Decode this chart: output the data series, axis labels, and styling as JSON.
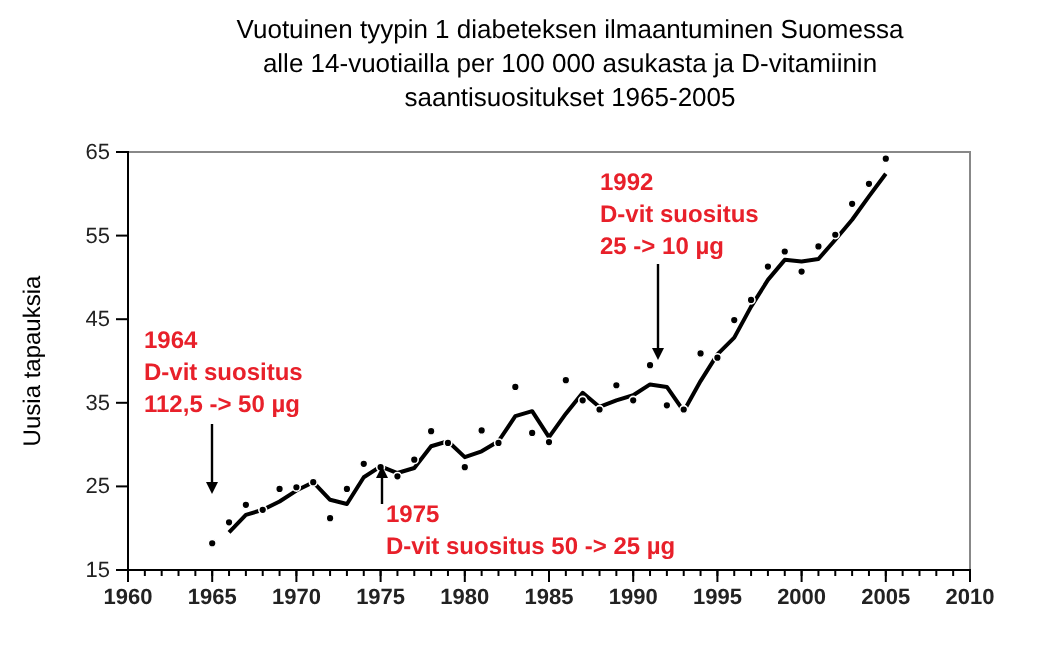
{
  "chart_data": {
    "type": "scatter",
    "title": "Vuotuinen tyypin 1 diabeteksen ilmaantuminen Suomessa\nalle 14-vuotiailla per 100 000 asukasta ja D-vitamiinin\nsaantisuositukset 1965-2005",
    "ylabel": "Uusia tapauksia",
    "xlim": [
      1960,
      2010
    ],
    "xticks": [
      1960,
      1965,
      1970,
      1975,
      1980,
      1985,
      1990,
      1995,
      2000,
      2005,
      2010
    ],
    "ylim": [
      15,
      65
    ],
    "yticks": [
      15,
      25,
      35,
      45,
      55,
      65
    ],
    "grid": false,
    "series": [
      {
        "color": "#000000",
        "marker": "circle",
        "x": [
          1965,
          1966,
          1967,
          1968,
          1969,
          1970,
          1971,
          1972,
          1973,
          1974,
          1975,
          1976,
          1977,
          1978,
          1979,
          1980,
          1981,
          1982,
          1983,
          1984,
          1985,
          1986,
          1987,
          1988,
          1989,
          1990,
          1991,
          1992,
          1993,
          1994,
          1995,
          1996,
          1997,
          1998,
          1999,
          2000,
          2001,
          2002,
          2003,
          2004,
          2005
        ],
        "values": [
          18.2,
          20.7,
          22.8,
          22.2,
          24.7,
          24.9,
          25.5,
          21.2,
          24.7,
          27.7,
          27.3,
          26.2,
          28.2,
          31.6,
          30.2,
          27.3,
          31.7,
          30.2,
          36.9,
          31.4,
          30.3,
          37.7,
          35.3,
          34.2,
          37.1,
          35.3,
          39.5,
          34.7,
          34.2,
          40.9,
          40.4,
          44.9,
          47.3,
          51.3,
          53.1,
          50.7,
          53.7,
          55.1,
          58.8,
          61.2,
          64.2
        ]
      },
      {
        "type": "line",
        "color": "#000000",
        "line_style": "solid",
        "x": [
          1966,
          1967,
          1968,
          1969,
          1970,
          1971,
          1972,
          1973,
          1974,
          1975,
          1976,
          1977,
          1978,
          1979,
          1980,
          1981,
          1982,
          1983,
          1984,
          1985,
          1986,
          1987,
          1988,
          1989,
          1990,
          1991,
          1992,
          1993,
          1994,
          1995,
          1996,
          1997,
          1998,
          1999,
          2000,
          2001,
          2002,
          2003,
          2004,
          2005
        ],
        "values": [
          19.5,
          21.6,
          22.2,
          23.2,
          24.5,
          25.5,
          23.4,
          22.9,
          26.1,
          27.4,
          26.6,
          27.2,
          29.8,
          30.4,
          28.5,
          29.2,
          30.4,
          33.4,
          34.0,
          30.9,
          33.7,
          36.2,
          34.5,
          35.3,
          35.9,
          37.2,
          36.9,
          34.0,
          37.6,
          40.8,
          42.8,
          46.5,
          49.7,
          52.1,
          51.9,
          52.2,
          54.5,
          56.9,
          59.7,
          62.4
        ]
      }
    ],
    "annotations": [
      "1964\nD-vit suositus\n112,5 -> 50 µg",
      "1975\nD-vit suositus 50 -> 25 µg",
      "1992\nD-vit suositus\n25 -> 10 µg"
    ]
  }
}
